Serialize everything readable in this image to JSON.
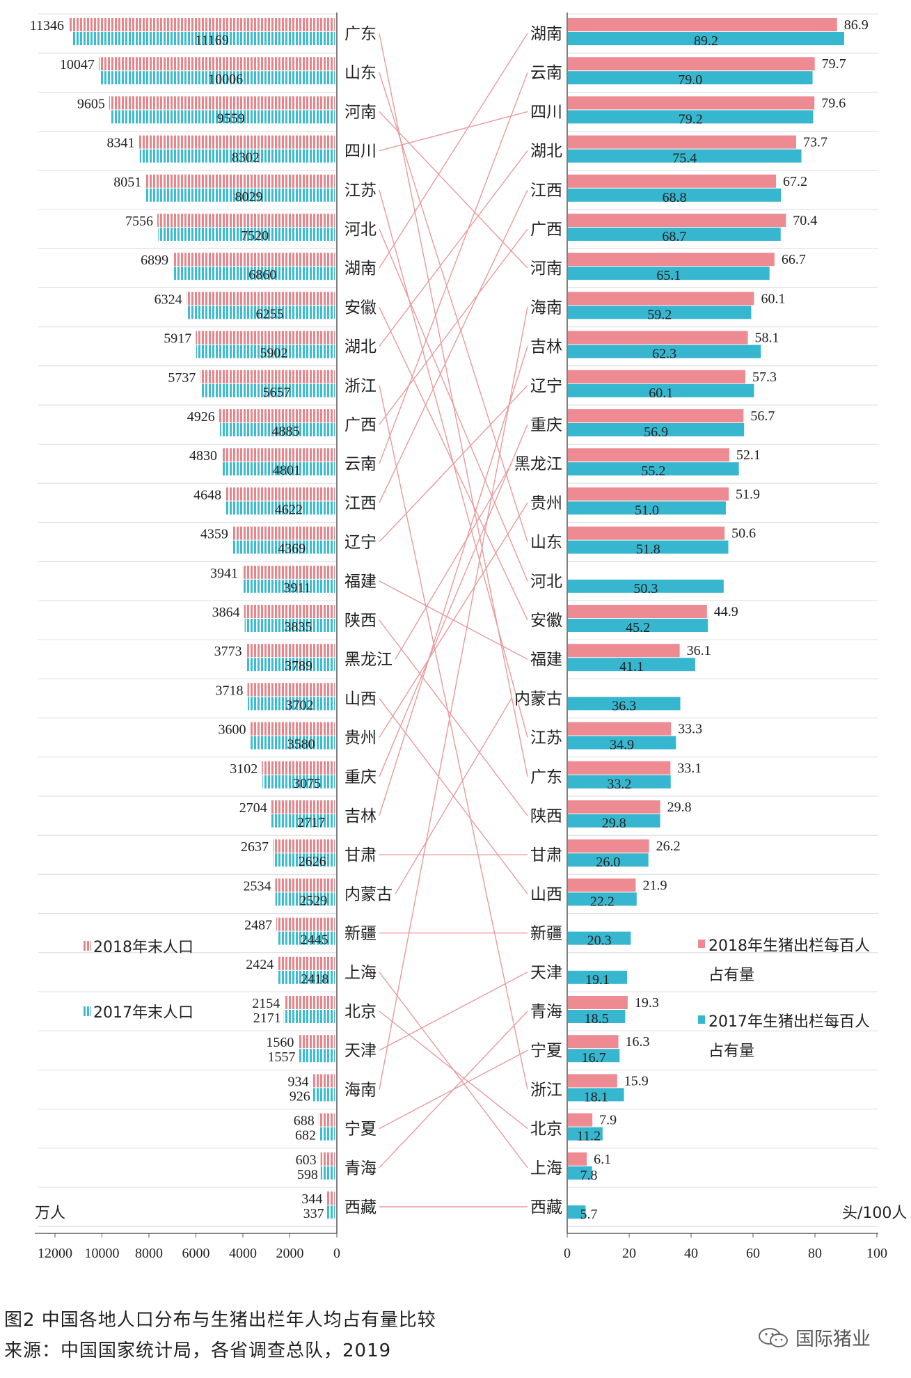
{
  "chart_data": [
    {
      "type": "bar",
      "orientation": "horizontal",
      "direction": "right-to-left",
      "xlabel": "万人",
      "xlim": [
        0,
        12000
      ],
      "xticks": [
        12000,
        10000,
        8000,
        6000,
        4000,
        2000,
        0
      ],
      "legend_position": "lower-left",
      "categories": [
        "广东",
        "山东",
        "河南",
        "四川",
        "江苏",
        "河北",
        "湖南",
        "安徽",
        "湖北",
        "浙江",
        "广西",
        "云南",
        "江西",
        "辽宁",
        "福建",
        "陕西",
        "黑龙江",
        "山西",
        "贵州",
        "重庆",
        "吉林",
        "甘肃",
        "内蒙古",
        "新疆",
        "上海",
        "北京",
        "天津",
        "海南",
        "宁夏",
        "青海",
        "西藏"
      ],
      "series": [
        {
          "name": "2018年末人口",
          "color": "#e8858a",
          "values": [
            11346,
            10047,
            9605,
            8341,
            8051,
            7556,
            6899,
            6324,
            5917,
            5737,
            4926,
            4830,
            4648,
            4359,
            3941,
            3864,
            3773,
            3718,
            3600,
            3102,
            2704,
            2637,
            2534,
            2487,
            2424,
            2154,
            1560,
            934,
            688,
            603,
            344
          ]
        },
        {
          "name": "2017年末人口",
          "color": "#3cbcd0",
          "values": [
            11169,
            10006,
            9559,
            8302,
            8029,
            7520,
            6860,
            6255,
            5902,
            5657,
            4885,
            4801,
            4622,
            4369,
            3911,
            3835,
            3789,
            3702,
            3580,
            3075,
            2717,
            2626,
            2529,
            2445,
            2418,
            2171,
            1557,
            926,
            682,
            598,
            337
          ]
        }
      ]
    },
    {
      "type": "bar",
      "orientation": "horizontal",
      "xlabel": "头/100人",
      "xlim": [
        0,
        100
      ],
      "xticks": [
        0,
        20,
        40,
        60,
        80,
        100
      ],
      "legend_position": "middle-right",
      "categories": [
        "湖南",
        "云南",
        "四川",
        "湖北",
        "江西",
        "广西",
        "河南",
        "海南",
        "吉林",
        "辽宁",
        "重庆",
        "黑龙江",
        "贵州",
        "山东",
        "河北",
        "安徽",
        "福建",
        "内蒙古",
        "江苏",
        "广东",
        "陕西",
        "甘肃",
        "山西",
        "新疆",
        "天津",
        "青海",
        "宁夏",
        "浙江",
        "北京",
        "上海",
        "西藏"
      ],
      "series": [
        {
          "name": "2018年生猪出栏每百人占有量",
          "color": "#ee8a92",
          "values": [
            86.9,
            79.7,
            79.6,
            73.7,
            67.2,
            70.4,
            66.7,
            60.1,
            58.1,
            57.3,
            56.7,
            52.1,
            51.9,
            50.6,
            null,
            44.9,
            36.1,
            null,
            33.3,
            33.1,
            29.8,
            26.2,
            21.9,
            null,
            null,
            19.3,
            16.3,
            15.9,
            7.9,
            6.1,
            null
          ]
        },
        {
          "name": "2017年生猪出栏每百人占有量",
          "color": "#37b6cf",
          "values": [
            89.2,
            79.0,
            79.2,
            75.4,
            68.8,
            68.7,
            65.1,
            59.2,
            62.3,
            60.1,
            56.9,
            55.2,
            51.0,
            51.8,
            50.3,
            45.2,
            41.1,
            36.3,
            34.9,
            33.2,
            29.8,
            26.0,
            22.2,
            20.3,
            19.1,
            18.5,
            16.7,
            18.1,
            11.2,
            7.8,
            5.7
          ]
        }
      ]
    }
  ],
  "legend_left": {
    "item_2018": "2018年末人口",
    "item_2017": "2017年末人口"
  },
  "legend_right": {
    "item_2018_line1": "2018年生猪出栏每百人",
    "item_2018_line2": "占有量",
    "item_2017_line1": "2017年生猪出栏每百人",
    "item_2017_line2": "占有量"
  },
  "axes": {
    "left_unit": "万人",
    "right_unit": "头/100人"
  },
  "caption": {
    "title": "图2  中国各地人口分布与生猪出栏年人均占有量比较",
    "source": "来源：中国国家统计局，各省调查总队，2019"
  },
  "watermark": {
    "text": "国际猪业",
    "icon": "wechat-icon"
  },
  "colors": {
    "pink": "#e8858a",
    "cyan": "#3cbcd0",
    "connector": "#e89a9c",
    "grid": "#dddddd"
  }
}
